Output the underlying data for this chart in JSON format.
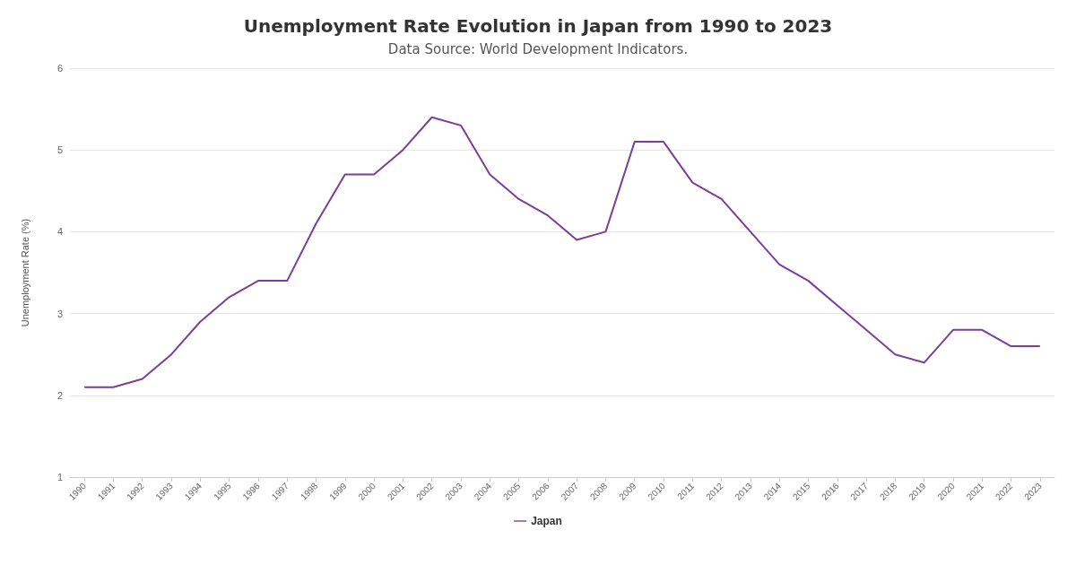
{
  "chart_data": {
    "type": "line",
    "title": "Unemployment Rate Evolution in Japan from 1990 to 2023",
    "subtitle": "Data Source: World Development Indicators.",
    "ylabel": "Unemployment Rate (%)",
    "categories": [
      "1990",
      "1991",
      "1992",
      "1993",
      "1994",
      "1995",
      "1996",
      "1997",
      "1998",
      "1999",
      "2000",
      "2001",
      "2002",
      "2003",
      "2004",
      "2005",
      "2006",
      "2007",
      "2008",
      "2009",
      "2010",
      "2011",
      "2012",
      "2013",
      "2014",
      "2015",
      "2016",
      "2017",
      "2018",
      "2019",
      "2020",
      "2021",
      "2022",
      "2023"
    ],
    "series": [
      {
        "name": "Japan",
        "color": "#7b3f98",
        "values": [
          2.1,
          2.1,
          2.2,
          2.5,
          2.9,
          3.2,
          3.4,
          3.4,
          4.1,
          4.7,
          4.7,
          5.0,
          5.4,
          5.3,
          4.7,
          4.4,
          4.2,
          3.9,
          4.0,
          5.1,
          5.1,
          4.6,
          4.4,
          4.0,
          3.6,
          3.4,
          3.1,
          2.8,
          2.5,
          2.4,
          2.8,
          2.8,
          2.6,
          2.6
        ]
      }
    ],
    "ylim": [
      1,
      6
    ],
    "yticks": [
      1,
      2,
      3,
      4,
      5,
      6
    ],
    "grid": "y",
    "legend": "bottom",
    "marker": "none",
    "line_style": "solid"
  }
}
